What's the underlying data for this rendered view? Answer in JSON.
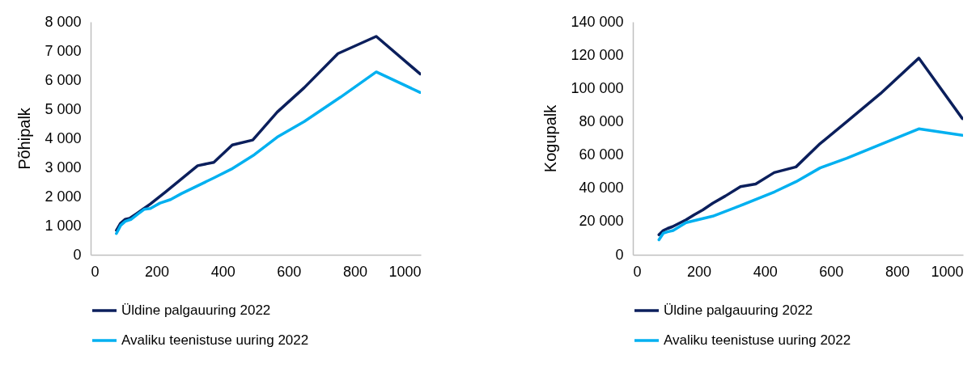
{
  "chart_data": [
    {
      "type": "line",
      "ylabel": "Põhipalk",
      "xlim": [
        0,
        1000
      ],
      "xticks": [
        0,
        200,
        400,
        600,
        800,
        1000
      ],
      "ylim": [
        0,
        8000
      ],
      "yticks": [
        0,
        {
          "value": 1000,
          "label": "1 000"
        },
        {
          "value": 2000,
          "label": "2 000"
        },
        {
          "value": 3000,
          "label": "3 000"
        },
        {
          "value": 4000,
          "label": "4 000"
        },
        {
          "value": 5000,
          "label": "5 000"
        },
        {
          "value": 6000,
          "label": "6 000"
        },
        {
          "value": 7000,
          "label": "7 000"
        },
        {
          "value": 8000,
          "label": "8 000"
        }
      ],
      "grid": false,
      "legend": "bottom",
      "line_style": "solid",
      "marker": "none",
      "series": [
        {
          "name": "Üldine palgauuring 2022",
          "color": "#0b1f5c",
          "x": [
            78,
            90,
            104,
            118,
            140,
            159,
            181,
            226,
            324,
            373,
            429,
            491,
            565,
            647,
            749,
            865,
            998
          ],
          "values": [
            840,
            1075,
            1214,
            1250,
            1420,
            1570,
            1745,
            2150,
            3060,
            3175,
            3770,
            3940,
            4900,
            5740,
            6910,
            7500,
            6210
          ]
        },
        {
          "name": "Avaliku teenistuse uuring 2022",
          "color": "#00b0f0",
          "x": [
            78,
            91,
            105,
            122,
            143,
            162,
            181,
            210,
            242,
            275,
            373,
            426,
            496,
            565,
            647,
            757,
            865,
            998
          ],
          "values": [
            730,
            1010,
            1150,
            1215,
            1400,
            1560,
            1590,
            1775,
            1895,
            2100,
            2640,
            2940,
            3440,
            4040,
            4575,
            5415,
            6280,
            5575
          ]
        }
      ]
    },
    {
      "type": "line",
      "ylabel": "Kogupalk",
      "xlim": [
        0,
        1000
      ],
      "xticks": [
        0,
        200,
        400,
        600,
        800,
        1000
      ],
      "ylim": [
        0,
        140000
      ],
      "yticks": [
        0,
        {
          "value": 20000,
          "label": "20 000"
        },
        {
          "value": 40000,
          "label": "40 000"
        },
        {
          "value": 60000,
          "label": "60 000"
        },
        {
          "value": 80000,
          "label": "80 000"
        },
        {
          "value": 100000,
          "label": "100 000"
        },
        {
          "value": 120000,
          "label": "120 000"
        },
        {
          "value": 140000,
          "label": "140 000"
        }
      ],
      "grid": false,
      "legend": "bottom",
      "line_style": "solid",
      "marker": "none",
      "series": [
        {
          "name": "Üldine palgauuring 2022",
          "color": "#0b1f5c",
          "x": [
            79,
            92,
            105,
            120,
            161,
            186,
            212,
            242,
            280,
            326,
            372,
            428,
            494,
            567,
            648,
            750,
            866,
            998
          ],
          "values": [
            12000,
            14600,
            15800,
            16900,
            21000,
            24100,
            27000,
            31000,
            35300,
            41000,
            42500,
            49400,
            52800,
            66800,
            80000,
            96900,
            118200,
            81800
          ]
        },
        {
          "name": "Avaliku teenistuse uuring 2022",
          "color": "#00b0f0",
          "x": [
            79,
            92,
            105,
            122,
            161,
            242,
            323,
            430,
            494,
            567,
            648,
            750,
            866,
            998
          ],
          "values": [
            9000,
            12900,
            13800,
            14600,
            19300,
            23200,
            29300,
            37900,
            43900,
            52200,
            58000,
            66300,
            75700,
            71800
          ]
        }
      ]
    }
  ]
}
